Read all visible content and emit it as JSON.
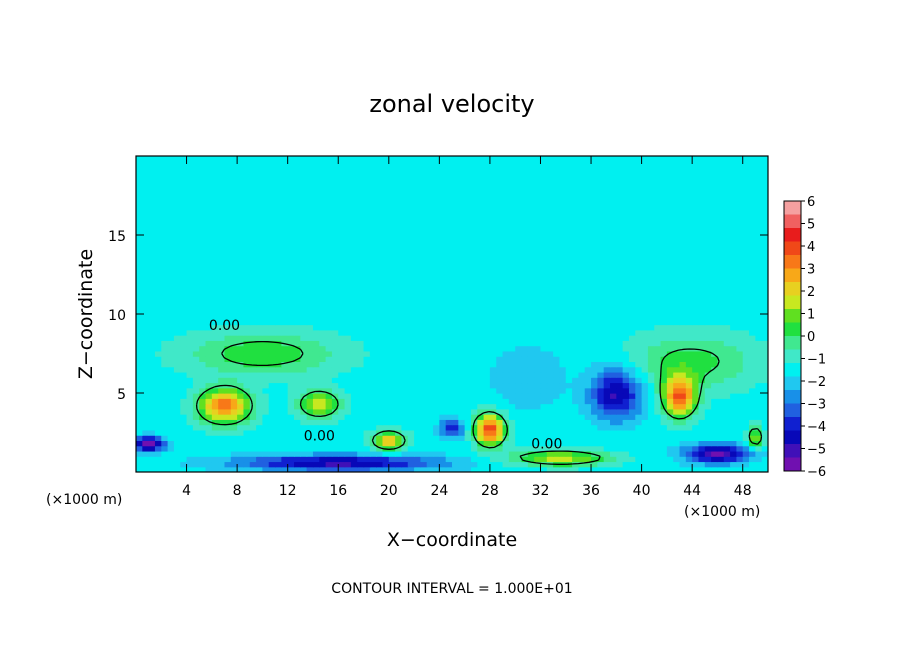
{
  "chart_data": {
    "type": "heatmap",
    "title": "zonal velocity",
    "xlabel": "X−coordinate",
    "ylabel": "Z−coordinate",
    "x_unit_left": "(×1000 m)",
    "x_unit_right": "(×1000 m)",
    "footer": "CONTOUR INTERVAL = 1.000E+01",
    "xlim": [
      0,
      50
    ],
    "ylim": [
      0,
      20
    ],
    "x_ticks": [
      4,
      8,
      12,
      16,
      20,
      24,
      28,
      32,
      36,
      40,
      44,
      48
    ],
    "x_tick_labels": [
      "4",
      "8",
      "12",
      "16",
      "20",
      "24",
      "28",
      "32",
      "36",
      "40",
      "44",
      "48"
    ],
    "y_ticks": [
      5,
      10,
      15
    ],
    "y_tick_labels": [
      "5",
      "10",
      "15"
    ],
    "contour_labels": [
      {
        "text": "0.00",
        "x": 7,
        "y": 9.0
      },
      {
        "text": "0.00",
        "x": 14.5,
        "y": 2.0
      },
      {
        "text": "0.00",
        "x": 32.5,
        "y": 1.5
      }
    ],
    "colorbar": {
      "min": -6,
      "max": 6,
      "tick_labels": [
        "6",
        "5",
        "4",
        "3",
        "2",
        "1",
        "0",
        "−1",
        "−2",
        "−3",
        "−4",
        "−5",
        "−6"
      ],
      "colors": [
        "#F5A0A0",
        "#F06060",
        "#E81C1C",
        "#F04818",
        "#F87818",
        "#F8A818",
        "#E8D020",
        "#C8E820",
        "#60E020",
        "#20E040",
        "#40E890",
        "#40E8C8",
        "#00F0F0",
        "#20C8F0",
        "#1890E8",
        "#2060E0",
        "#1020D0",
        "#0808B8",
        "#4010B8",
        "#7010B0"
      ]
    },
    "background_value": -1.5,
    "features": [
      {
        "x": 7,
        "y": 4.2,
        "amp": 5.0,
        "sx": 2.0,
        "sy": 1.1
      },
      {
        "x": 14.5,
        "y": 4.3,
        "amp": 3.2,
        "sx": 1.7,
        "sy": 0.9
      },
      {
        "x": 20,
        "y": 2.0,
        "amp": 4.0,
        "sx": 1.3,
        "sy": 0.6
      },
      {
        "x": 28,
        "y": 2.7,
        "amp": 5.5,
        "sx": 1.2,
        "sy": 1.0
      },
      {
        "x": 43,
        "y": 4.8,
        "amp": 5.0,
        "sx": 1.3,
        "sy": 1.3
      },
      {
        "x": 38,
        "y": 5.0,
        "amp": -3.5,
        "sx": 2.0,
        "sy": 1.6
      },
      {
        "x": 25,
        "y": 2.8,
        "amp": -2.8,
        "sx": 0.9,
        "sy": 0.6
      },
      {
        "x": 10,
        "y": 7.5,
        "amp": 2.0,
        "sx": 6.0,
        "sy": 1.4
      },
      {
        "x": 44,
        "y": 7.0,
        "amp": 1.8,
        "sx": 5.0,
        "sy": 1.8
      },
      {
        "x": 31,
        "y": 6.0,
        "amp": -0.8,
        "sx": 3.0,
        "sy": 2.0
      },
      {
        "x": 1.0,
        "y": 1.8,
        "amp": -4.5,
        "sx": 1.2,
        "sy": 0.45
      },
      {
        "x": 16.0,
        "y": 0.6,
        "amp": -3.5,
        "sx": 8.0,
        "sy": 0.5
      },
      {
        "x": 33.5,
        "y": 0.9,
        "amp": 3.0,
        "sx": 4.0,
        "sy": 0.5
      },
      {
        "x": 46,
        "y": 1.2,
        "amp": -4.0,
        "sx": 2.5,
        "sy": 0.6
      },
      {
        "x": 49,
        "y": 2.2,
        "amp": 3.0,
        "sx": 0.6,
        "sy": 0.7
      }
    ]
  }
}
